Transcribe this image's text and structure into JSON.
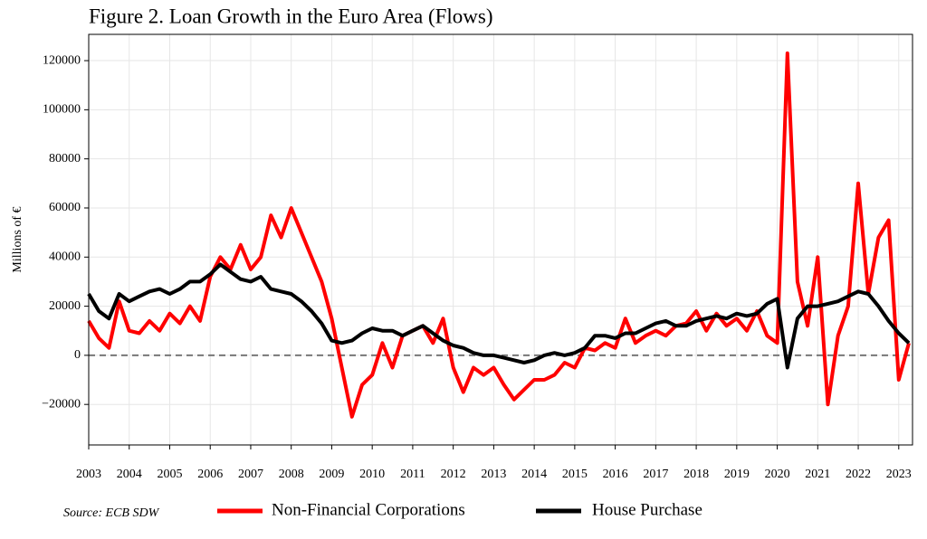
{
  "chart_data": {
    "type": "line",
    "title": "Figure 2. Loan Growth in the Euro Area (Flows)",
    "y_label": "Millions of €",
    "source": "Source: ECB SDW",
    "x": [
      2003,
      2003.25,
      2003.5,
      2003.75,
      2004,
      2004.25,
      2004.5,
      2004.75,
      2005,
      2005.25,
      2005.5,
      2005.75,
      2006,
      2006.25,
      2006.5,
      2006.75,
      2007,
      2007.25,
      2007.5,
      2007.75,
      2008,
      2008.25,
      2008.5,
      2008.75,
      2009,
      2009.25,
      2009.5,
      2009.75,
      2010,
      2010.25,
      2010.5,
      2010.75,
      2011,
      2011.25,
      2011.5,
      2011.75,
      2012,
      2012.25,
      2012.5,
      2012.75,
      2013,
      2013.25,
      2013.5,
      2013.75,
      2014,
      2014.25,
      2014.5,
      2014.75,
      2015,
      2015.25,
      2015.5,
      2015.75,
      2016,
      2016.25,
      2016.5,
      2016.75,
      2017,
      2017.25,
      2017.5,
      2017.75,
      2018,
      2018.25,
      2018.5,
      2018.75,
      2019,
      2019.25,
      2019.5,
      2019.75,
      2020,
      2020.25,
      2020.5,
      2020.75,
      2021,
      2021.25,
      2021.5,
      2021.75,
      2022,
      2022.25,
      2022.5,
      2022.75,
      2023,
      2023.25
    ],
    "series": [
      {
        "name": "Non-Financial Corporations",
        "color": "#ff0000",
        "values": [
          14000,
          7000,
          3000,
          22000,
          10000,
          9000,
          14000,
          10000,
          17000,
          13000,
          20000,
          14000,
          32000,
          40000,
          35000,
          45000,
          35000,
          40000,
          57000,
          48000,
          60000,
          50000,
          40000,
          30000,
          15000,
          -5000,
          -25000,
          -12000,
          -8000,
          5000,
          -5000,
          8000,
          10000,
          12000,
          5000,
          15000,
          -5000,
          -15000,
          -5000,
          -8000,
          -5000,
          -12000,
          -18000,
          -14000,
          -10000,
          -10000,
          -8000,
          -3000,
          -5000,
          3000,
          2000,
          5000,
          3000,
          15000,
          5000,
          8000,
          10000,
          8000,
          12000,
          13000,
          18000,
          10000,
          17000,
          12000,
          15000,
          10000,
          18000,
          8000,
          5000,
          123000,
          30000,
          12000,
          40000,
          -20000,
          8000,
          20000,
          70000,
          25000,
          48000,
          55000,
          -10000,
          5000
        ]
      },
      {
        "name": "House Purchase",
        "color": "#000000",
        "values": [
          25000,
          18000,
          15000,
          25000,
          22000,
          24000,
          26000,
          27000,
          25000,
          27000,
          30000,
          30000,
          33000,
          37000,
          34000,
          31000,
          30000,
          32000,
          27000,
          26000,
          25000,
          22000,
          18000,
          13000,
          6000,
          5000,
          6000,
          9000,
          11000,
          10000,
          10000,
          8000,
          10000,
          12000,
          9000,
          6000,
          4000,
          3000,
          1000,
          0,
          0,
          -1000,
          -2000,
          -3000,
          -2000,
          0,
          1000,
          0,
          1000,
          3000,
          8000,
          8000,
          7000,
          9000,
          9000,
          11000,
          13000,
          14000,
          12000,
          12000,
          14000,
          15000,
          16000,
          15000,
          17000,
          16000,
          17000,
          21000,
          23000,
          -5000,
          15000,
          20000,
          20000,
          21000,
          22000,
          24000,
          26000,
          25000,
          20000,
          14000,
          9000,
          5000
        ]
      }
    ],
    "xlim": [
      2003,
      2023.34
    ],
    "ylim": [
      -36500,
      130700
    ],
    "xticks": [
      2003,
      2004,
      2005,
      2006,
      2007,
      2008,
      2009,
      2010,
      2011,
      2012,
      2013,
      2014,
      2015,
      2016,
      2017,
      2018,
      2019,
      2020,
      2021,
      2022,
      2023
    ],
    "yticks": [
      {
        "value": -20000,
        "label": "−20000"
      },
      0,
      20000,
      40000,
      60000,
      80000,
      100000,
      120000
    ],
    "hline": 0,
    "grid": true
  }
}
